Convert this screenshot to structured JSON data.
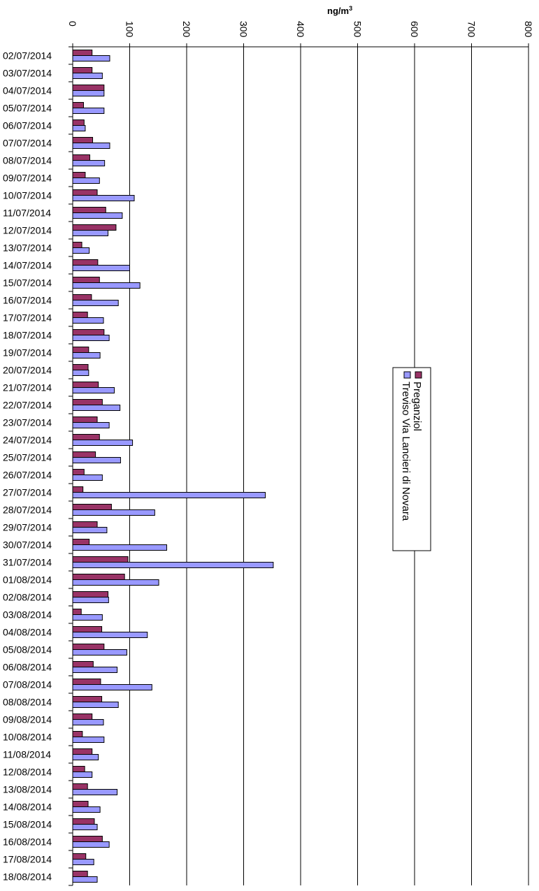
{
  "chart_data": {
    "type": "bar",
    "orientation": "horizontal",
    "xlabel": "ng/m",
    "xlabel_superscript": "3",
    "xlim": [
      0,
      800
    ],
    "x_ticks": [
      "0",
      "100",
      "200",
      "300",
      "400",
      "500",
      "600",
      "700",
      "800"
    ],
    "grid": "vertical",
    "legend_position": "right-center, rotated",
    "categories": [
      "02/07/2014",
      "03/07/2014",
      "04/07/2014",
      "05/07/2014",
      "06/07/2014",
      "07/07/2014",
      "08/07/2014",
      "09/07/2014",
      "10/07/2014",
      "11/07/2014",
      "12/07/2014",
      "13/07/2014",
      "14/07/2014",
      "15/07/2014",
      "16/07/2014",
      "17/07/2014",
      "18/07/2014",
      "19/07/2014",
      "20/07/2014",
      "21/07/2014",
      "22/07/2014",
      "23/07/2014",
      "24/07/2014",
      "25/07/2014",
      "26/07/2014",
      "27/07/2014",
      "28/07/2014",
      "29/07/2014",
      "30/07/2014",
      "31/07/2014",
      "01/08/2014",
      "02/08/2014",
      "03/08/2014",
      "04/08/2014",
      "05/08/2014",
      "06/08/2014",
      "07/08/2014",
      "08/08/2014",
      "09/08/2014",
      "10/08/2014",
      "11/08/2014",
      "12/08/2014",
      "13/08/2014",
      "14/08/2014",
      "15/08/2014",
      "16/08/2014",
      "17/08/2014",
      "18/08/2014"
    ],
    "series": [
      {
        "name": "Preganziol",
        "color": "#993366",
        "values": [
          34,
          34,
          55,
          19,
          20,
          35,
          30,
          22,
          43,
          58,
          76,
          16,
          44,
          47,
          33,
          26,
          55,
          28,
          27,
          45,
          52,
          43,
          47,
          40,
          20,
          18,
          68,
          43,
          29,
          97,
          91,
          62,
          15,
          51,
          55,
          36,
          49,
          51,
          34,
          17,
          34,
          21,
          26,
          27,
          38,
          52,
          23,
          26
        ]
      },
      {
        "name": "Treviso Via Lancieri di Novara",
        "color": "#9999ff",
        "values": [
          65,
          52,
          55,
          55,
          22,
          65,
          56,
          47,
          108,
          87,
          62,
          29,
          100,
          118,
          80,
          54,
          64,
          48,
          28,
          73,
          83,
          64,
          105,
          84,
          52,
          338,
          144,
          60,
          165,
          352,
          151,
          63,
          52,
          131,
          95,
          78,
          139,
          80,
          54,
          55,
          45,
          34,
          78,
          48,
          43,
          64,
          37,
          43
        ]
      }
    ]
  }
}
